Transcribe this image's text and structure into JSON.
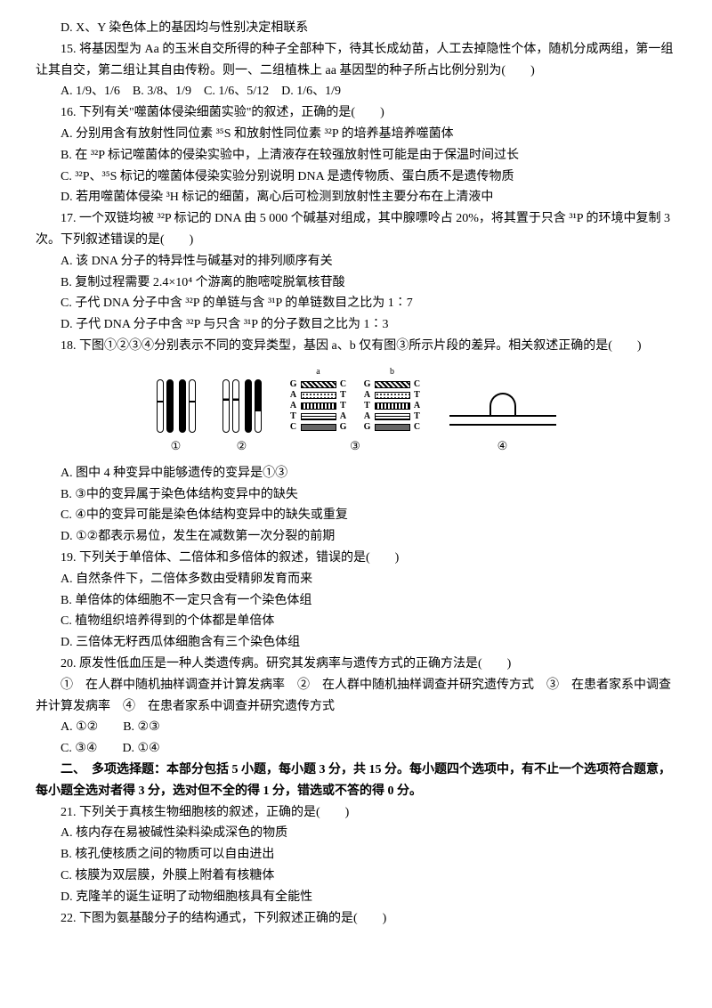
{
  "q14d": "D. X、Y 染色体上的基因均与性别决定相联系",
  "q15": {
    "stem": "15. 将基因型为 Aa 的玉米自交所得的种子全部种下，待其长成幼苗，人工去掉隐性个体，随机分成两组，第一组让其自交，第二组让其自由传粉。则一、二组植株上 aa 基因型的种子所占比例分别为(　　)",
    "opts": "A. 1/9、1/6　B. 3/8、1/9　C. 1/6、5/12　D. 1/6、1/9"
  },
  "q16": {
    "stem": "16. 下列有关\"噬菌体侵染细菌实验\"的叙述，正确的是(　　)",
    "a": "A. 分别用含有放射性同位素 ³⁵S 和放射性同位素 ³²P 的培养基培养噬菌体",
    "b": "B. 在 ³²P 标记噬菌体的侵染实验中，上清液存在较强放射性可能是由于保温时间过长",
    "c": "C. ³²P、³⁵S 标记的噬菌体侵染实验分别说明 DNA 是遗传物质、蛋白质不是遗传物质",
    "d": "D. 若用噬菌体侵染 ³H 标记的细菌，离心后可检测到放射性主要分布在上清液中"
  },
  "q17": {
    "stem": "17. 一个双链均被 ³²P 标记的 DNA 由 5 000 个碱基对组成，其中腺嘌呤占 20%，将其置于只含 ³¹P 的环境中复制 3 次。下列叙述错误的是(　　)",
    "a": "A. 该 DNA 分子的特异性与碱基对的排列顺序有关",
    "b": "B. 复制过程需要 2.4×10⁴ 个游离的胞嘧啶脱氧核苷酸",
    "c": "C. 子代 DNA 分子中含 ³²P 的单链与含 ³¹P 的单链数目之比为 1∶7",
    "d": "D. 子代 DNA 分子中含 ³²P 与只含 ³¹P 的分子数目之比为 1∶3"
  },
  "q18": {
    "stem": "18. 下图①②③④分别表示不同的变异类型，基因 a、b 仅有图③所示片段的差异。相关叙述正确的是(　　)",
    "a": "A. 图中 4 种变异中能够遗传的变异是①③",
    "b": "B. ③中的变异属于染色体结构变异中的缺失",
    "c": "C. ④中的变异可能是染色体结构变异中的缺失或重复",
    "d": "D. ①②都表示易位，发生在减数第一次分裂的前期"
  },
  "q19": {
    "stem": "19. 下列关于单倍体、二倍体和多倍体的叙述，错误的是(　　)",
    "a": "A. 自然条件下，二倍体多数由受精卵发育而来",
    "b": "B. 单倍体的体细胞不一定只含有一个染色体组",
    "c": "C. 植物组织培养得到的个体都是单倍体",
    "d": "D. 三倍体无籽西瓜体细胞含有三个染色体组"
  },
  "q20": {
    "stem": "20. 原发性低血压是一种人类遗传病。研究其发病率与遗传方式的正确方法是(　　)",
    "nums": "①　在人群中随机抽样调查并计算发病率　②　在人群中随机抽样调查并研究遗传方式　③　在患者家系中调查并计算发病率　④　在患者家系中调查并研究遗传方式",
    "opts1": "A. ①②　　B. ②③",
    "opts2": "C. ③④　　D. ①④"
  },
  "section2": "二、　多项选择题：本部分包括 5 小题，每小题 3 分，共 15 分。每小题四个选项中，有不止一个选项符合题意，每小题全选对者得 3 分，选对但不全的得 1 分，错选或不答的得 0 分。",
  "q21": {
    "stem": "21. 下列关于真核生物细胞核的叙述，正确的是(　　)",
    "a": "A. 核内存在易被碱性染料染成深色的物质",
    "b": "B. 核孔使核质之间的物质可以自由进出",
    "c": "C. 核膜为双层膜，外膜上附着有核糖体",
    "d": "D. 克隆羊的诞生证明了动物细胞核具有全能性"
  },
  "q22": {
    "stem": "22. 下图为氨基酸分子的结构通式，下列叙述正确的是(　　)"
  },
  "figlabels": {
    "l1": "①",
    "l2": "②",
    "l3": "③",
    "l4": "④",
    "la": "a",
    "lb": "b"
  },
  "seq": {
    "a": [
      "G",
      "A",
      "A",
      "T",
      "C"
    ],
    "a2": [
      "C",
      "T",
      "T",
      "A",
      "G"
    ],
    "b": [
      "G",
      "A",
      "T",
      "A",
      "G"
    ],
    "b2": [
      "C",
      "T",
      "A",
      "T",
      "C"
    ]
  }
}
